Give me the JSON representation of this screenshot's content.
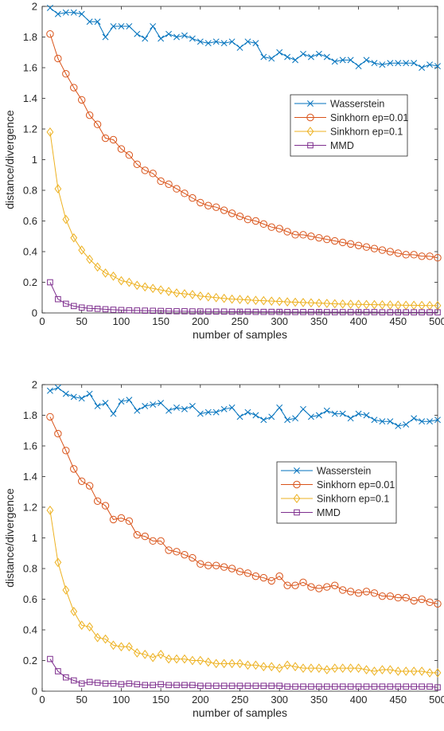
{
  "chart_data": [
    {
      "type": "line",
      "xlabel": "number of samples",
      "ylabel": "distance/divergence",
      "xlim": [
        0,
        500
      ],
      "ylim": [
        0,
        2
      ],
      "xticks": [
        0,
        50,
        100,
        150,
        200,
        250,
        300,
        350,
        400,
        450,
        500
      ],
      "yticks": [
        0,
        0.2,
        0.4,
        0.6,
        0.8,
        1,
        1.2,
        1.4,
        1.6,
        1.8,
        2
      ],
      "grid": false,
      "legend_position": "right",
      "x": [
        10,
        20,
        30,
        40,
        50,
        60,
        70,
        80,
        90,
        100,
        110,
        120,
        130,
        140,
        150,
        160,
        170,
        180,
        190,
        200,
        210,
        220,
        230,
        240,
        250,
        260,
        270,
        280,
        290,
        300,
        310,
        320,
        330,
        340,
        350,
        360,
        370,
        380,
        390,
        400,
        410,
        420,
        430,
        440,
        450,
        460,
        470,
        480,
        490,
        500
      ],
      "series": [
        {
          "name": "Wasserstein",
          "color": "#0072BD",
          "marker": "x",
          "values": [
            1.99,
            1.95,
            1.96,
            1.96,
            1.95,
            1.9,
            1.9,
            1.8,
            1.87,
            1.87,
            1.87,
            1.82,
            1.79,
            1.87,
            1.79,
            1.82,
            1.8,
            1.81,
            1.79,
            1.77,
            1.76,
            1.77,
            1.76,
            1.77,
            1.73,
            1.77,
            1.76,
            1.67,
            1.66,
            1.7,
            1.67,
            1.65,
            1.69,
            1.67,
            1.69,
            1.67,
            1.64,
            1.65,
            1.65,
            1.61,
            1.65,
            1.63,
            1.62,
            1.63,
            1.63,
            1.63,
            1.63,
            1.6,
            1.62,
            1.61
          ]
        },
        {
          "name": "Sinkhorn ep=0.01",
          "color": "#D95319",
          "marker": "o",
          "values": [
            1.82,
            1.66,
            1.56,
            1.47,
            1.39,
            1.29,
            1.23,
            1.14,
            1.13,
            1.07,
            1.03,
            0.97,
            0.93,
            0.91,
            0.86,
            0.84,
            0.81,
            0.78,
            0.75,
            0.72,
            0.7,
            0.69,
            0.67,
            0.65,
            0.63,
            0.61,
            0.6,
            0.58,
            0.56,
            0.55,
            0.53,
            0.51,
            0.51,
            0.5,
            0.49,
            0.48,
            0.47,
            0.46,
            0.45,
            0.44,
            0.43,
            0.42,
            0.41,
            0.4,
            0.39,
            0.38,
            0.38,
            0.37,
            0.37,
            0.36
          ]
        },
        {
          "name": "Sinkhorn ep=0.1",
          "color": "#EDB120",
          "marker": "diamond",
          "values": [
            1.18,
            0.81,
            0.61,
            0.49,
            0.41,
            0.35,
            0.3,
            0.26,
            0.24,
            0.21,
            0.2,
            0.18,
            0.17,
            0.16,
            0.15,
            0.14,
            0.13,
            0.125,
            0.12,
            0.11,
            0.105,
            0.1,
            0.095,
            0.09,
            0.088,
            0.085,
            0.082,
            0.08,
            0.077,
            0.075,
            0.072,
            0.07,
            0.068,
            0.066,
            0.064,
            0.062,
            0.06,
            0.058,
            0.057,
            0.056,
            0.055,
            0.054,
            0.053,
            0.052,
            0.051,
            0.05,
            0.05,
            0.049,
            0.048,
            0.048
          ]
        },
        {
          "name": "MMD",
          "color": "#7E2F8E",
          "marker": "square",
          "values": [
            0.2,
            0.09,
            0.06,
            0.045,
            0.035,
            0.03,
            0.027,
            0.024,
            0.021,
            0.019,
            0.017,
            0.016,
            0.015,
            0.014,
            0.013,
            0.012,
            0.011,
            0.011,
            0.01,
            0.01,
            0.009,
            0.009,
            0.009,
            0.008,
            0.008,
            0.008,
            0.007,
            0.007,
            0.007,
            0.007,
            0.006,
            0.006,
            0.006,
            0.006,
            0.006,
            0.005,
            0.005,
            0.005,
            0.005,
            0.005,
            0.005,
            0.005,
            0.004,
            0.004,
            0.004,
            0.004,
            0.004,
            0.004,
            0.004,
            0.004
          ]
        }
      ]
    },
    {
      "type": "line",
      "xlabel": "number of samples",
      "ylabel": "distance/divergence",
      "xlim": [
        0,
        500
      ],
      "ylim": [
        0,
        2
      ],
      "xticks": [
        0,
        50,
        100,
        150,
        200,
        250,
        300,
        350,
        400,
        450,
        500
      ],
      "yticks": [
        0,
        0.2,
        0.4,
        0.6,
        0.8,
        1,
        1.2,
        1.4,
        1.6,
        1.8,
        2
      ],
      "grid": false,
      "legend_position": "right",
      "x": [
        10,
        20,
        30,
        40,
        50,
        60,
        70,
        80,
        90,
        100,
        110,
        120,
        130,
        140,
        150,
        160,
        170,
        180,
        190,
        200,
        210,
        220,
        230,
        240,
        250,
        260,
        270,
        280,
        290,
        300,
        310,
        320,
        330,
        340,
        350,
        360,
        370,
        380,
        390,
        400,
        410,
        420,
        430,
        440,
        450,
        460,
        470,
        480,
        490,
        500
      ],
      "series": [
        {
          "name": "Wasserstein",
          "color": "#0072BD",
          "marker": "x",
          "values": [
            1.96,
            1.98,
            1.94,
            1.92,
            1.91,
            1.94,
            1.86,
            1.88,
            1.81,
            1.89,
            1.9,
            1.83,
            1.86,
            1.87,
            1.88,
            1.83,
            1.85,
            1.84,
            1.86,
            1.81,
            1.82,
            1.82,
            1.84,
            1.85,
            1.79,
            1.82,
            1.8,
            1.77,
            1.79,
            1.85,
            1.77,
            1.78,
            1.84,
            1.79,
            1.8,
            1.83,
            1.81,
            1.81,
            1.78,
            1.81,
            1.8,
            1.77,
            1.76,
            1.76,
            1.73,
            1.74,
            1.78,
            1.76,
            1.76,
            1.77
          ]
        },
        {
          "name": "Sinkhorn ep=0.01",
          "color": "#D95319",
          "marker": "o",
          "values": [
            1.79,
            1.68,
            1.57,
            1.45,
            1.37,
            1.34,
            1.24,
            1.21,
            1.12,
            1.13,
            1.11,
            1.02,
            1.01,
            0.98,
            0.98,
            0.92,
            0.91,
            0.89,
            0.87,
            0.83,
            0.82,
            0.82,
            0.81,
            0.8,
            0.78,
            0.77,
            0.75,
            0.74,
            0.72,
            0.75,
            0.69,
            0.69,
            0.71,
            0.68,
            0.67,
            0.68,
            0.69,
            0.66,
            0.65,
            0.64,
            0.65,
            0.64,
            0.62,
            0.62,
            0.61,
            0.61,
            0.59,
            0.6,
            0.58,
            0.57
          ]
        },
        {
          "name": "Sinkhorn ep=0.1",
          "color": "#EDB120",
          "marker": "diamond",
          "values": [
            1.18,
            0.84,
            0.66,
            0.52,
            0.43,
            0.42,
            0.35,
            0.34,
            0.3,
            0.29,
            0.29,
            0.25,
            0.24,
            0.22,
            0.24,
            0.21,
            0.21,
            0.21,
            0.2,
            0.2,
            0.19,
            0.18,
            0.18,
            0.18,
            0.18,
            0.17,
            0.17,
            0.16,
            0.16,
            0.15,
            0.17,
            0.16,
            0.15,
            0.15,
            0.15,
            0.14,
            0.15,
            0.15,
            0.15,
            0.15,
            0.14,
            0.13,
            0.14,
            0.14,
            0.13,
            0.13,
            0.13,
            0.13,
            0.12,
            0.12
          ]
        },
        {
          "name": "MMD",
          "color": "#7E2F8E",
          "marker": "square",
          "values": [
            0.21,
            0.13,
            0.09,
            0.07,
            0.05,
            0.06,
            0.055,
            0.05,
            0.05,
            0.045,
            0.05,
            0.045,
            0.04,
            0.04,
            0.045,
            0.04,
            0.04,
            0.04,
            0.04,
            0.035,
            0.035,
            0.035,
            0.035,
            0.035,
            0.035,
            0.035,
            0.035,
            0.035,
            0.035,
            0.035,
            0.03,
            0.03,
            0.03,
            0.03,
            0.03,
            0.03,
            0.03,
            0.03,
            0.03,
            0.03,
            0.03,
            0.03,
            0.03,
            0.03,
            0.03,
            0.03,
            0.03,
            0.03,
            0.03,
            0.025
          ]
        }
      ]
    }
  ]
}
